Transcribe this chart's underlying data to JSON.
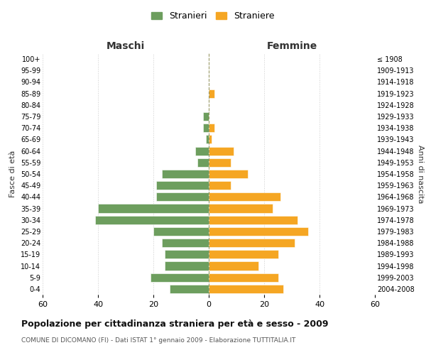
{
  "age_groups": [
    "0-4",
    "5-9",
    "10-14",
    "15-19",
    "20-24",
    "25-29",
    "30-34",
    "35-39",
    "40-44",
    "45-49",
    "50-54",
    "55-59",
    "60-64",
    "65-69",
    "70-74",
    "75-79",
    "80-84",
    "85-89",
    "90-94",
    "95-99",
    "100+"
  ],
  "birth_years": [
    "2004-2008",
    "1999-2003",
    "1994-1998",
    "1989-1993",
    "1984-1988",
    "1979-1983",
    "1974-1978",
    "1969-1973",
    "1964-1968",
    "1959-1963",
    "1954-1958",
    "1949-1953",
    "1944-1948",
    "1939-1943",
    "1934-1938",
    "1929-1933",
    "1924-1928",
    "1919-1923",
    "1914-1918",
    "1909-1913",
    "≤ 1908"
  ],
  "males": [
    14,
    21,
    16,
    16,
    17,
    20,
    41,
    40,
    19,
    19,
    17,
    4,
    5,
    1,
    2,
    2,
    0,
    0,
    0,
    0,
    0
  ],
  "females": [
    27,
    25,
    18,
    25,
    31,
    36,
    32,
    23,
    26,
    8,
    14,
    8,
    9,
    1,
    2,
    0,
    0,
    2,
    0,
    0,
    0
  ],
  "male_color": "#6d9e5e",
  "female_color": "#f5a623",
  "background_color": "#ffffff",
  "grid_color": "#cccccc",
  "title": "Popolazione per cittadinanza straniera per età e sesso - 2009",
  "subtitle": "COMUNE DI DICOMANO (FI) - Dati ISTAT 1° gennaio 2009 - Elaborazione TUTTITALIA.IT",
  "xlabel_left": "Maschi",
  "xlabel_right": "Femmine",
  "ylabel_left": "Fasce di età",
  "ylabel_right": "Anni di nascita",
  "legend_male": "Stranieri",
  "legend_female": "Straniere",
  "xlim": 60
}
